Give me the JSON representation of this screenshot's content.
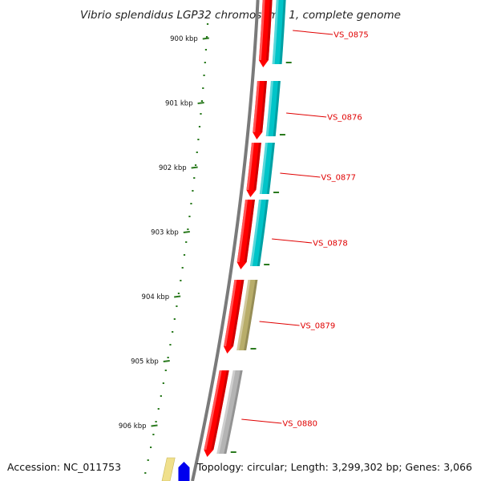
{
  "title": "Vibrio splendidus LGP32 chromosome 1, complete genome",
  "footer": {
    "accession": "Accession: NC_011753",
    "summary": "Topology: circular; Length: 3,299,302 bp; Genes: 3,066"
  },
  "ruler": {
    "color": "#2a7a1e",
    "ticks": [
      {
        "label": "900 kbp"
      },
      {
        "label": "901 kbp"
      },
      {
        "label": "902 kbp"
      },
      {
        "label": "903 kbp"
      },
      {
        "label": "904 kbp"
      },
      {
        "label": "905 kbp"
      },
      {
        "label": "906 kbp"
      }
    ]
  },
  "genes": [
    {
      "locus": "VS_0875",
      "color": "#00c4c8"
    },
    {
      "locus": "VS_0876",
      "color": "#00c4c8"
    },
    {
      "locus": "VS_0877",
      "color": "#00c4c8"
    },
    {
      "locus": "VS_0878",
      "color": "#00c4c8"
    },
    {
      "locus": "VS_0879",
      "color": "#b8ad6a"
    },
    {
      "locus": "VS_0880",
      "color": "#b4b4b4"
    }
  ],
  "colors": {
    "cds": "#ff0000",
    "backbone": "#7a7a7a",
    "label": "#e00000",
    "extra_yellow": "#f0e08c",
    "extra_blue": "#0000ee"
  }
}
